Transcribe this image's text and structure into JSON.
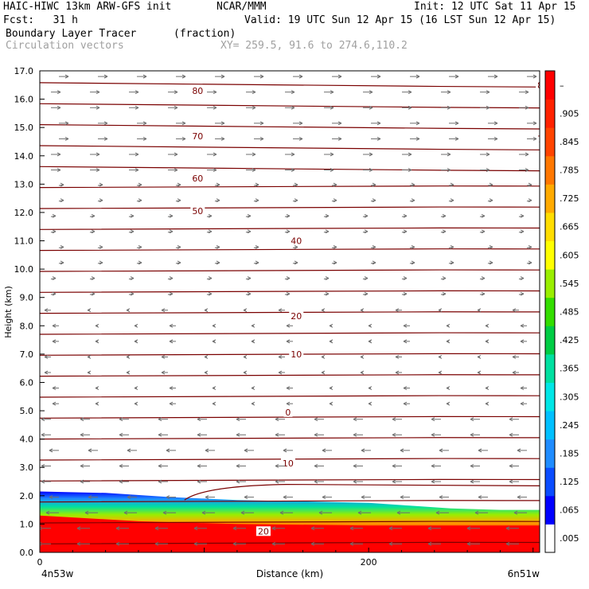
{
  "header": {
    "model": "HAIC-HIWC 13km ARW-GFS init",
    "org": "NCAR/MMM",
    "init": "Init: 12 UTC Sat 11 Apr 15",
    "fcst": "Fcst:   31 h",
    "valid": "Valid: 19 UTC Sun 12 Apr 15 (16 LST Sun 12 Apr 15)",
    "field": "Boundary Layer Tracer",
    "units": "(fraction)",
    "vectors": "Circulation vectors",
    "xy": "XY= 259.5, 91.6 to 274.6,110.2"
  },
  "chart_data": {
    "type": "heatmap",
    "ylabel": "Height (km)",
    "xlabel": "Distance (km)",
    "ylim": [
      0,
      17
    ],
    "xlim": [
      0,
      304
    ],
    "y_ticks": [
      "0.0",
      "1.0",
      "2.0",
      "3.0",
      "4.0",
      "5.0",
      "6.0",
      "7.0",
      "8.0",
      "9.0",
      "10.0",
      "11.0",
      "12.0",
      "13.0",
      "14.0",
      "15.0",
      "16.0",
      "17.0"
    ],
    "x_ticks": [
      {
        "value": 0,
        "label": "0"
      },
      {
        "value": 200,
        "label": "200"
      }
    ],
    "endpoints": {
      "left": "4n53w",
      "right": "6n51w"
    },
    "colorbar": {
      "labels": [
        ".005",
        ".065",
        ".125",
        ".185",
        ".245",
        ".305",
        ".365",
        ".425",
        ".485",
        ".545",
        ".605",
        ".665",
        ".725",
        ".785",
        ".845",
        ".905",
        "–"
      ],
      "colors": [
        "#ffffff",
        "#0000ff",
        "#0a4cff",
        "#1f8cff",
        "#00c0ff",
        "#00e6e6",
        "#00e0a0",
        "#00cc44",
        "#33dd00",
        "#99ee00",
        "#ffff00",
        "#ffdd00",
        "#ffaa00",
        "#ff7700",
        "#ff4400",
        "#ff2200",
        "#ff0000"
      ]
    },
    "contour_labels": [
      {
        "text": "80",
        "x": 96,
        "y": 16.3
      },
      {
        "text": "80",
        "x": 306,
        "y": 16.5
      },
      {
        "text": "70",
        "x": 96,
        "y": 14.7
      },
      {
        "text": "70",
        "x": 306,
        "y": 14.6
      },
      {
        "text": "60",
        "x": 96,
        "y": 13.2
      },
      {
        "text": "50",
        "x": 96,
        "y": 12.05
      },
      {
        "text": "40",
        "x": 156,
        "y": 11.0
      },
      {
        "text": "20",
        "x": 156,
        "y": 8.35
      },
      {
        "text": "10",
        "x": 156,
        "y": 7.0
      },
      {
        "text": "0",
        "x": 151,
        "y": 4.95
      },
      {
        "text": "10",
        "x": 151,
        "y": 3.15
      },
      {
        "text": "20",
        "x": 136,
        "y": 0.75
      }
    ]
  }
}
